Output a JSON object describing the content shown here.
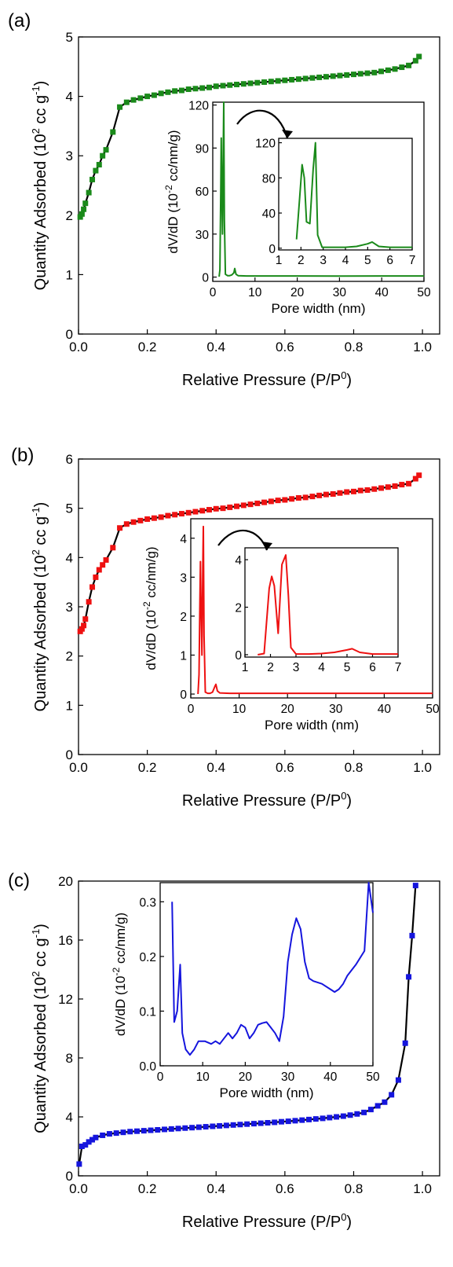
{
  "figure": {
    "panels": [
      {
        "label": "(a)",
        "color": "#1a8a1a"
      },
      {
        "label": "(b)",
        "color": "#ee1111"
      },
      {
        "label": "(c)",
        "color": "#1515dd"
      }
    ],
    "isotherm_xlabel": "Relative Pressure (P/P",
    "isotherm_xlabel_sup": "0",
    "isotherm_xlabel_end": ")",
    "isotherm_ylabel": "Quantity Adsorbed (10",
    "isotherm_ylabel_sup1": "2",
    "isotherm_ylabel_mid": " cc g",
    "isotherm_ylabel_sup2": "-1",
    "isotherm_ylabel_end": ")",
    "inset_xlabel": "Pore width (nm)",
    "inset_ylabel": "dV/dD (10",
    "inset_ylabel_sup": "-2",
    "inset_ylabel_end": " cc/nm/g)"
  },
  "chart_data": [
    {
      "type": "scatter",
      "panel": "(a)",
      "role": "isotherm",
      "color": "#1a8a1a",
      "xlabel": "Relative Pressure (P/P0)",
      "ylabel": "Quantity Adsorbed (10^2 cc g^-1)",
      "xlim": [
        0,
        1.05
      ],
      "ylim": [
        0,
        5
      ],
      "xticks": [
        "0.0",
        "0.2",
        "0.4",
        "0.6",
        "0.8",
        "1.0"
      ],
      "yticks": [
        "0",
        "1",
        "2",
        "3",
        "4",
        "5"
      ],
      "x": [
        0.005,
        0.01,
        0.015,
        0.02,
        0.03,
        0.04,
        0.05,
        0.06,
        0.07,
        0.08,
        0.1,
        0.12,
        0.14,
        0.16,
        0.18,
        0.2,
        0.22,
        0.24,
        0.26,
        0.28,
        0.3,
        0.32,
        0.34,
        0.36,
        0.38,
        0.4,
        0.42,
        0.44,
        0.46,
        0.48,
        0.5,
        0.52,
        0.54,
        0.56,
        0.58,
        0.6,
        0.62,
        0.64,
        0.66,
        0.68,
        0.7,
        0.72,
        0.74,
        0.76,
        0.78,
        0.8,
        0.82,
        0.84,
        0.86,
        0.88,
        0.9,
        0.92,
        0.94,
        0.96,
        0.98,
        0.99
      ],
      "y": [
        1.97,
        2.02,
        2.1,
        2.2,
        2.38,
        2.6,
        2.75,
        2.85,
        3.0,
        3.1,
        3.4,
        3.82,
        3.9,
        3.94,
        3.97,
        4.0,
        4.02,
        4.05,
        4.07,
        4.09,
        4.1,
        4.12,
        4.13,
        4.14,
        4.15,
        4.17,
        4.18,
        4.19,
        4.2,
        4.21,
        4.22,
        4.23,
        4.24,
        4.25,
        4.26,
        4.27,
        4.28,
        4.29,
        4.3,
        4.31,
        4.32,
        4.33,
        4.34,
        4.35,
        4.36,
        4.37,
        4.38,
        4.39,
        4.4,
        4.42,
        4.44,
        4.46,
        4.49,
        4.52,
        4.6,
        4.67
      ],
      "inset": {
        "type": "line",
        "xlabel": "Pore width (nm)",
        "ylabel": "dV/dD (10^-2 cc/nm/g)",
        "xlim": [
          0,
          50
        ],
        "ylim": [
          -3,
          122
        ],
        "xticks": [
          "0",
          "10",
          "20",
          "30",
          "40",
          "50"
        ],
        "yticks": [
          "0",
          "30",
          "60",
          "90",
          "120"
        ],
        "x": [
          1.5,
          1.7,
          1.9,
          2.0,
          2.1,
          2.3,
          2.5,
          2.6,
          2.75,
          3.0,
          3.5,
          4.0,
          4.5,
          5.0,
          5.2,
          5.5,
          6,
          8,
          10,
          20,
          30,
          40,
          50
        ],
        "y": [
          0.3,
          5,
          60,
          97,
          70,
          30,
          90,
          122,
          40,
          2,
          1,
          1,
          1.5,
          3,
          6,
          2,
          1,
          0.8,
          0.8,
          0.8,
          0.7,
          0.8,
          0.8
        ]
      },
      "zoom": {
        "type": "line",
        "xlim": [
          1,
          7
        ],
        "ylim": [
          -2,
          125
        ],
        "xticks": [
          "1",
          "2",
          "3",
          "4",
          "5",
          "6",
          "7"
        ],
        "yticks": [
          "0",
          "40",
          "80",
          "120"
        ],
        "x": [
          1.8,
          1.95,
          2.05,
          2.15,
          2.25,
          2.4,
          2.55,
          2.65,
          2.75,
          2.95,
          3.5,
          4.0,
          4.5,
          5.0,
          5.2,
          5.5,
          6.0,
          7.0
        ],
        "y": [
          10,
          60,
          95,
          80,
          30,
          28,
          90,
          120,
          15,
          1,
          1,
          1,
          2,
          5,
          7,
          2,
          1,
          1
        ]
      }
    },
    {
      "type": "scatter",
      "panel": "(b)",
      "role": "isotherm",
      "color": "#ee1111",
      "xlabel": "Relative Pressure (P/P0)",
      "ylabel": "Quantity Adsorbed (10^2 cc g^-1)",
      "xlim": [
        0,
        1.05
      ],
      "ylim": [
        0,
        6
      ],
      "xticks": [
        "0.0",
        "0.2",
        "0.4",
        "0.6",
        "0.8",
        "1.0"
      ],
      "yticks": [
        "0",
        "1",
        "2",
        "3",
        "4",
        "5",
        "6"
      ],
      "x": [
        0.005,
        0.01,
        0.015,
        0.02,
        0.03,
        0.04,
        0.05,
        0.06,
        0.07,
        0.08,
        0.1,
        0.12,
        0.14,
        0.16,
        0.18,
        0.2,
        0.22,
        0.24,
        0.26,
        0.28,
        0.3,
        0.32,
        0.34,
        0.36,
        0.38,
        0.4,
        0.42,
        0.44,
        0.46,
        0.48,
        0.5,
        0.52,
        0.54,
        0.56,
        0.58,
        0.6,
        0.62,
        0.64,
        0.66,
        0.68,
        0.7,
        0.72,
        0.74,
        0.76,
        0.78,
        0.8,
        0.82,
        0.84,
        0.86,
        0.88,
        0.9,
        0.92,
        0.94,
        0.96,
        0.98,
        0.99
      ],
      "y": [
        2.5,
        2.55,
        2.62,
        2.75,
        3.1,
        3.4,
        3.6,
        3.75,
        3.85,
        3.95,
        4.2,
        4.6,
        4.68,
        4.72,
        4.75,
        4.78,
        4.8,
        4.82,
        4.85,
        4.87,
        4.89,
        4.91,
        4.93,
        4.95,
        4.97,
        4.99,
        5.0,
        5.02,
        5.04,
        5.06,
        5.08,
        5.1,
        5.12,
        5.14,
        5.16,
        5.17,
        5.19,
        5.21,
        5.22,
        5.24,
        5.26,
        5.28,
        5.29,
        5.31,
        5.33,
        5.34,
        5.36,
        5.37,
        5.39,
        5.41,
        5.43,
        5.45,
        5.48,
        5.5,
        5.6,
        5.67
      ],
      "inset": {
        "type": "line",
        "xlabel": "Pore width (nm)",
        "ylabel": "dV/dD (10^-2 cc/nm/g)",
        "xlim": [
          0,
          50
        ],
        "ylim": [
          -0.1,
          4.5
        ],
        "xticks": [
          "0",
          "10",
          "20",
          "30",
          "40",
          "50"
        ],
        "yticks": [
          "0",
          "1",
          "2",
          "3",
          "4"
        ],
        "x": [
          1.5,
          1.7,
          1.9,
          2.0,
          2.1,
          2.3,
          2.5,
          2.6,
          2.75,
          3.0,
          3.5,
          4.0,
          4.5,
          5.0,
          5.2,
          5.5,
          6,
          8,
          10,
          20,
          30,
          40,
          50
        ],
        "y": [
          0.0,
          0.5,
          2.5,
          3.4,
          2.5,
          1.0,
          3.4,
          4.3,
          1.5,
          0.05,
          0.02,
          0.02,
          0.05,
          0.2,
          0.25,
          0.08,
          0.03,
          0.02,
          0.02,
          0.02,
          0.02,
          0.02,
          0.02
        ]
      },
      "zoom": {
        "type": "line",
        "xlim": [
          1,
          7
        ],
        "ylim": [
          -0.1,
          4.5
        ],
        "xticks": [
          "1",
          "2",
          "3",
          "4",
          "5",
          "6",
          "7"
        ],
        "yticks": [
          "0",
          "2",
          "4"
        ],
        "x": [
          1.5,
          1.75,
          1.95,
          2.05,
          2.15,
          2.3,
          2.45,
          2.6,
          2.7,
          2.8,
          3.0,
          3.5,
          4.0,
          4.5,
          5.0,
          5.2,
          5.5,
          6.0,
          7.0
        ],
        "y": [
          0,
          0.05,
          2.8,
          3.3,
          2.9,
          0.9,
          3.8,
          4.2,
          2.5,
          0.3,
          0.03,
          0.03,
          0.05,
          0.1,
          0.2,
          0.25,
          0.1,
          0.03,
          0.03
        ]
      }
    },
    {
      "type": "scatter",
      "panel": "(c)",
      "role": "isotherm",
      "color": "#1515dd",
      "xlabel": "Relative Pressure (P/P0)",
      "ylabel": "Quantity Adsorbed (10^2 cc g^-1)",
      "xlim": [
        0,
        1.05
      ],
      "ylim": [
        0,
        20
      ],
      "xticks": [
        "0.0",
        "0.2",
        "0.4",
        "0.6",
        "0.8",
        "1.0"
      ],
      "yticks": [
        "0",
        "4",
        "8",
        "12",
        "16",
        "20"
      ],
      "x": [
        0.002,
        0.01,
        0.02,
        0.03,
        0.04,
        0.05,
        0.07,
        0.09,
        0.11,
        0.13,
        0.15,
        0.17,
        0.19,
        0.21,
        0.23,
        0.25,
        0.27,
        0.29,
        0.31,
        0.33,
        0.35,
        0.37,
        0.39,
        0.41,
        0.43,
        0.45,
        0.47,
        0.49,
        0.51,
        0.53,
        0.55,
        0.57,
        0.59,
        0.61,
        0.63,
        0.65,
        0.67,
        0.69,
        0.71,
        0.73,
        0.75,
        0.77,
        0.79,
        0.81,
        0.83,
        0.85,
        0.87,
        0.89,
        0.91,
        0.93,
        0.95,
        0.96,
        0.97,
        0.98
      ],
      "y": [
        0.8,
        2.0,
        2.1,
        2.3,
        2.45,
        2.6,
        2.75,
        2.85,
        2.9,
        2.95,
        3.0,
        3.03,
        3.06,
        3.09,
        3.12,
        3.15,
        3.18,
        3.21,
        3.24,
        3.27,
        3.3,
        3.33,
        3.36,
        3.39,
        3.42,
        3.45,
        3.48,
        3.51,
        3.54,
        3.57,
        3.6,
        3.63,
        3.67,
        3.7,
        3.74,
        3.78,
        3.82,
        3.86,
        3.9,
        3.95,
        4.0,
        4.05,
        4.12,
        4.2,
        4.3,
        4.5,
        4.75,
        5.0,
        5.5,
        6.5,
        9.0,
        13.5,
        16.3,
        19.7
      ],
      "inset": {
        "type": "line",
        "xlabel": "Pore width (nm)",
        "ylabel": "dV/dD (10^-2 cc/nm/g)",
        "xlim": [
          0,
          50
        ],
        "ylim": [
          0,
          0.335
        ],
        "xticks": [
          "0",
          "10",
          "20",
          "30",
          "40",
          "50"
        ],
        "yticks": [
          "0.0",
          "0.1",
          "0.2",
          "0.3"
        ],
        "x": [
          2.8,
          3.3,
          4,
          4.7,
          5.2,
          6,
          7,
          8,
          9,
          10.5,
          12,
          13,
          14,
          15,
          16,
          17,
          18,
          19,
          20,
          21,
          22,
          23,
          24,
          25,
          26,
          27,
          28,
          29,
          30,
          31,
          32,
          33,
          34,
          35,
          36,
          38,
          40,
          41,
          42,
          43,
          44,
          46,
          48,
          49,
          50
        ],
        "y": [
          0.3,
          0.08,
          0.1,
          0.185,
          0.06,
          0.03,
          0.02,
          0.03,
          0.045,
          0.045,
          0.04,
          0.045,
          0.04,
          0.05,
          0.06,
          0.05,
          0.06,
          0.075,
          0.07,
          0.05,
          0.06,
          0.075,
          0.078,
          0.08,
          0.07,
          0.06,
          0.045,
          0.09,
          0.19,
          0.24,
          0.27,
          0.25,
          0.19,
          0.16,
          0.155,
          0.15,
          0.14,
          0.135,
          0.14,
          0.15,
          0.165,
          0.185,
          0.21,
          0.335,
          0.28
        ]
      }
    }
  ]
}
